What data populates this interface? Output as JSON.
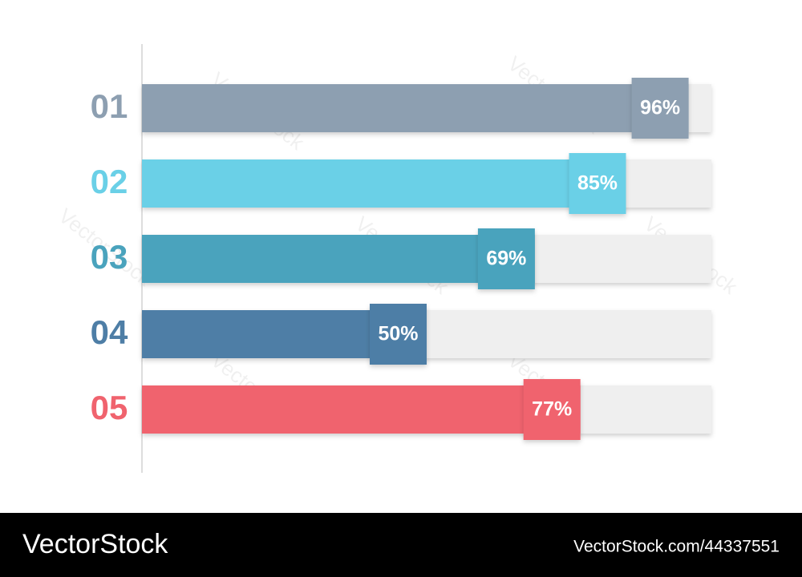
{
  "chart_data": {
    "type": "bar",
    "orientation": "horizontal",
    "categories": [
      "01",
      "02",
      "03",
      "04",
      "05"
    ],
    "values": [
      96,
      85,
      69,
      50,
      77
    ],
    "value_labels": [
      "96%",
      "85%",
      "69%",
      "50%",
      "77%"
    ],
    "colors": [
      "#8d9fb1",
      "#6ad0e7",
      "#4aa3bd",
      "#4e7ea6",
      "#f0636e"
    ],
    "xlim": [
      0,
      100
    ]
  },
  "watermark": "VectorStock",
  "footer": {
    "brand": "VectorStock",
    "id": "VectorStock.com/44337551"
  }
}
